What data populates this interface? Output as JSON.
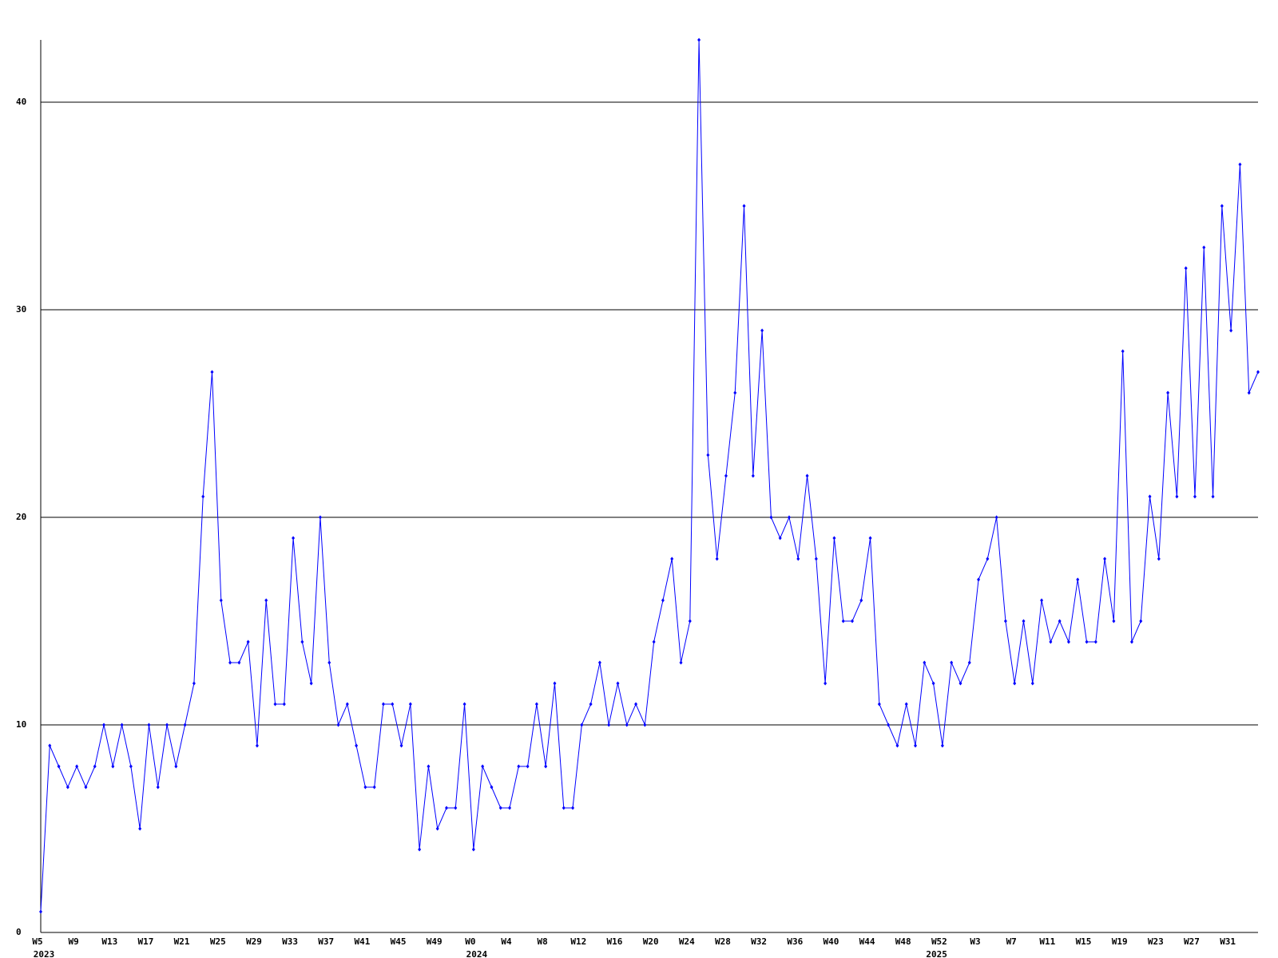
{
  "chart_data": {
    "type": "line",
    "categories": [
      "W5",
      null,
      null,
      null,
      "W9",
      null,
      null,
      null,
      "W13",
      null,
      null,
      null,
      "W17",
      null,
      null,
      null,
      "W21",
      null,
      null,
      null,
      "W25",
      null,
      null,
      null,
      "W29",
      null,
      null,
      null,
      "W33",
      null,
      null,
      null,
      "W37",
      null,
      null,
      null,
      "W41",
      null,
      null,
      null,
      "W45",
      null,
      null,
      null,
      "W49",
      null,
      null,
      null,
      "W0",
      null,
      null,
      null,
      "W4",
      null,
      null,
      null,
      "W8",
      null,
      null,
      null,
      "W12",
      null,
      null,
      null,
      "W16",
      null,
      null,
      null,
      "W20",
      null,
      null,
      null,
      "W24",
      null,
      null,
      null,
      "W28",
      null,
      null,
      null,
      "W32",
      null,
      null,
      null,
      "W36",
      null,
      null,
      null,
      "W40",
      null,
      null,
      null,
      "W44",
      null,
      null,
      null,
      "W48",
      null,
      null,
      null,
      "W52",
      null,
      null,
      null,
      "W3",
      null,
      null,
      null,
      "W7",
      null,
      null,
      null,
      "W11",
      null,
      null,
      null,
      "W15",
      null,
      null,
      null,
      "W19",
      null,
      null,
      null,
      "W23",
      null,
      null,
      null,
      "W27",
      null,
      null,
      null,
      "W31",
      null,
      null,
      null
    ],
    "years": [
      "2023",
      null,
      null,
      null,
      null,
      null,
      null,
      null,
      null,
      null,
      null,
      null,
      null,
      null,
      null,
      null,
      null,
      null,
      null,
      null,
      null,
      null,
      null,
      null,
      null,
      null,
      null,
      null,
      null,
      null,
      null,
      null,
      null,
      null,
      null,
      null,
      null,
      null,
      null,
      null,
      null,
      null,
      null,
      null,
      null,
      null,
      null,
      null,
      "2024",
      null,
      null,
      null,
      null,
      null,
      null,
      null,
      null,
      null,
      null,
      null,
      null,
      null,
      null,
      null,
      null,
      null,
      null,
      null,
      null,
      null,
      null,
      null,
      null,
      null,
      null,
      null,
      null,
      null,
      null,
      null,
      null,
      null,
      null,
      null,
      null,
      null,
      null,
      null,
      null,
      null,
      null,
      null,
      null,
      null,
      null,
      null,
      null,
      null,
      null,
      "2025",
      null,
      null,
      null,
      null,
      null,
      null,
      null,
      null,
      null,
      null,
      null,
      null,
      null,
      null,
      null,
      null,
      null,
      null,
      null,
      null,
      null,
      null,
      null,
      null,
      null,
      null,
      null,
      null,
      null,
      null,
      null,
      null,
      null
    ],
    "values": [
      1,
      9,
      8,
      7,
      8,
      7,
      8,
      10,
      8,
      10,
      8,
      5,
      10,
      7,
      10,
      8,
      10,
      12,
      21,
      27,
      16,
      13,
      13,
      14,
      9,
      16,
      11,
      11,
      19,
      14,
      12,
      20,
      13,
      10,
      11,
      9,
      7,
      7,
      11,
      11,
      9,
      11,
      4,
      8,
      5,
      6,
      6,
      11,
      4,
      8,
      7,
      6,
      6,
      8,
      8,
      11,
      8,
      12,
      6,
      6,
      10,
      11,
      13,
      10,
      12,
      10,
      11,
      10,
      14,
      16,
      18,
      13,
      15,
      43,
      23,
      18,
      22,
      26,
      35,
      22,
      29,
      20,
      19,
      20,
      18,
      22,
      18,
      12,
      19,
      15,
      15,
      16,
      19,
      11,
      10,
      9,
      11,
      9,
      13,
      12,
      9,
      13,
      12,
      13,
      17,
      18,
      20,
      15,
      12,
      15,
      12,
      16,
      14,
      15,
      14,
      17,
      14,
      14,
      18,
      15,
      28,
      14,
      15,
      21,
      18,
      26,
      21,
      32,
      21,
      33,
      21,
      35,
      29,
      37,
      26,
      27
    ],
    "color": "#0000ff",
    "ylim": [
      0,
      43
    ],
    "yticks": [
      0,
      10,
      20,
      30,
      40
    ],
    "grid": true
  }
}
